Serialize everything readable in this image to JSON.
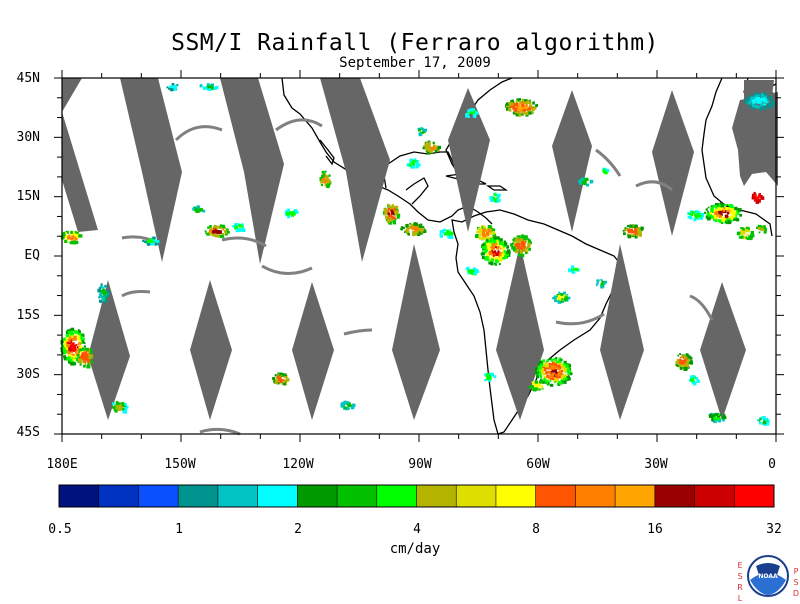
{
  "title": "SSM/I Rainfall (Ferraro algorithm)",
  "subtitle": "September 17, 2009",
  "lat_labels": [
    "45N",
    "30N",
    "15N",
    "EQ",
    "15S",
    "30S",
    "45S"
  ],
  "lon_labels": [
    "180E",
    "150W",
    "120W",
    "90W",
    "60W",
    "30W",
    "0"
  ],
  "colorbar": {
    "unit": "cm/day",
    "tick_labels": [
      "0.5",
      "1",
      "2",
      "4",
      "8",
      "16",
      "32"
    ],
    "colors": [
      "#00127d",
      "#0033c2",
      "#0a50ff",
      "#00948f",
      "#00c4c4",
      "#00ffff",
      "#009900",
      "#00c000",
      "#00ff00",
      "#b3b300",
      "#dede00",
      "#ffff00",
      "#ff5500",
      "#ff7f00",
      "#ffa500",
      "#990000",
      "#cc0000",
      "#ff0000"
    ]
  },
  "logo": {
    "left_letters": [
      "E",
      "S",
      "R",
      "L"
    ],
    "right_letters": [
      "P",
      "S",
      "D"
    ],
    "badge": "NOAA"
  }
}
